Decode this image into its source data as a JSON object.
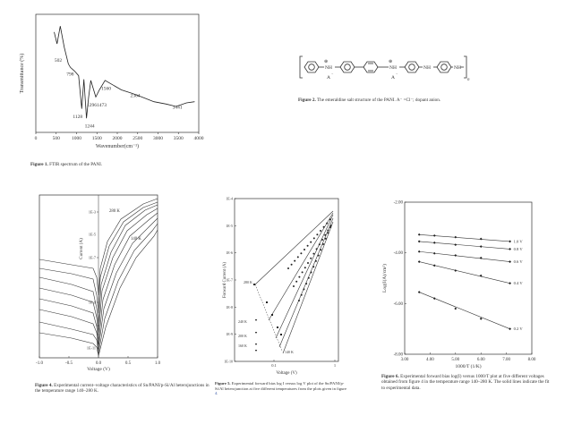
{
  "figure1": {
    "caption_label": "Figure 1.",
    "caption_text": "FTIR spectrum of the PANI.",
    "chart_data": {
      "type": "line",
      "xlabel": "Wavenumber(cm⁻¹)",
      "ylabel": "Transmittance (%)",
      "xlim": [
        0,
        4000
      ],
      "x_ticks": [
        "0",
        "500",
        "1000",
        "1500",
        "2000",
        "2500",
        "3000",
        "3500",
        "4000"
      ],
      "annotations": [
        {
          "text": "502",
          "x": 502
        },
        {
          "text": "798",
          "x": 798
        },
        {
          "text": "1128",
          "x": 1128
        },
        {
          "text": "1244",
          "x": 1244
        },
        {
          "text": "1296",
          "x": 1296
        },
        {
          "text": "1473",
          "x": 1473
        },
        {
          "text": "1560",
          "x": 1560
        },
        {
          "text": "2364",
          "x": 2364
        },
        {
          "text": "3441",
          "x": 3441
        }
      ],
      "series": [
        {
          "x": [
            450,
            520,
            600,
            700,
            798,
            850,
            950,
            1050,
            1128,
            1180,
            1244,
            1296,
            1350,
            1473,
            1560,
            1700,
            1900,
            2100,
            2364,
            2600,
            2900,
            3200,
            3441,
            3700,
            3900
          ],
          "y": [
            0.85,
            0.75,
            0.9,
            0.72,
            0.58,
            0.55,
            0.52,
            0.48,
            0.2,
            0.45,
            0.12,
            0.3,
            0.44,
            0.3,
            0.36,
            0.44,
            0.4,
            0.36,
            0.33,
            0.3,
            0.26,
            0.24,
            0.22,
            0.25,
            0.26
          ]
        }
      ]
    }
  },
  "figure2": {
    "caption_label": "Figure 2.",
    "caption_text": "The emeraldine salt structure of the PANI. A⁻ =Cl⁻; dopant anion.",
    "structure_labels": {
      "nh": "NH",
      "a": "A",
      "plus": "⊕",
      "minus": "⁻",
      "n": "n"
    }
  },
  "figure4": {
    "caption_label": "Figure 4.",
    "caption_text": "Experimental current–voltage characteristics of Sn/PANI/p-Si/Al heterojunctions in the temperature range 140–280 K.",
    "chart_data": {
      "type": "line",
      "xlabel": "Voltage (V)",
      "ylabel": "Current (A)",
      "xlim": [
        -1.0,
        1.0
      ],
      "x_ticks": [
        "-1.0",
        "-0.5",
        "0.0",
        "0.5",
        "1.0"
      ],
      "y_ticks": [
        "1E-3",
        "1E-5",
        "1E-7",
        "1E-9",
        "1E-11"
      ],
      "y_log": true,
      "labels": [
        "280 K",
        "140 K"
      ]
    }
  },
  "figure5": {
    "caption_label": "Figure 5.",
    "caption_text": "Experimental forward bias log I versus log V plot of the Sn/PANI/p-Si/Al heterojunction at five different temperatures from the plots given in figure",
    "caption_ref": "4",
    "chart_data": {
      "type": "scatter",
      "xlabel": "Voltage (V)",
      "ylabel": "Forward Current (A)",
      "x_log": true,
      "y_log": true,
      "x_ticks": [
        "0.1",
        "1"
      ],
      "y_ticks": [
        "1E-4",
        "1E-5",
        "1E-6",
        "1E-7",
        "1E-8",
        "1E-9",
        "1E-10"
      ],
      "labels": [
        "280 K",
        "240 K",
        "200 K",
        "160 K",
        "140 K"
      ]
    }
  },
  "figure6": {
    "caption_label": "Figure 6.",
    "caption_text": "Experimental forward bias log(I) versus 1000/T plot at five different voltages obtained from figure 4 in the temperature range 140–280 K. The solid lines indicate the fit to experimental data.",
    "chart_data": {
      "type": "scatter",
      "xlabel": "1000/T (1/K)",
      "ylabel": "Log(I(A)/cm²)",
      "xlim": [
        3.0,
        8.0
      ],
      "ylim": [
        -8.0,
        -2.0
      ],
      "x_ticks": [
        "3.00",
        "4.00",
        "5.00",
        "6.00",
        "7.00",
        "8.00"
      ],
      "y_ticks": [
        "-2.00",
        "-4.00",
        "-6.00",
        "-8.00"
      ],
      "series": [
        {
          "name": "1.0 V",
          "x": [
            3.57,
            4.17,
            5.0,
            6.0,
            7.14
          ],
          "y": [
            -3.28,
            -3.32,
            -3.38,
            -3.45,
            -3.55
          ]
        },
        {
          "name": "0.8 V",
          "x": [
            3.57,
            4.17,
            5.0,
            6.0,
            7.14
          ],
          "y": [
            -3.55,
            -3.6,
            -3.68,
            -3.75,
            -3.85
          ]
        },
        {
          "name": "0.6 V",
          "x": [
            3.57,
            4.17,
            5.0,
            6.0,
            7.14
          ],
          "y": [
            -3.95,
            -4.02,
            -4.1,
            -4.2,
            -4.35
          ]
        },
        {
          "name": "0.4 V",
          "x": [
            3.57,
            4.17,
            5.0,
            6.0,
            7.14
          ],
          "y": [
            -4.35,
            -4.5,
            -4.7,
            -4.9,
            -5.2
          ]
        },
        {
          "name": "0.2 V",
          "x": [
            3.57,
            4.17,
            5.0,
            6.0,
            7.14
          ],
          "y": [
            -5.55,
            -5.8,
            -6.2,
            -6.6,
            -7.0
          ]
        }
      ]
    }
  }
}
